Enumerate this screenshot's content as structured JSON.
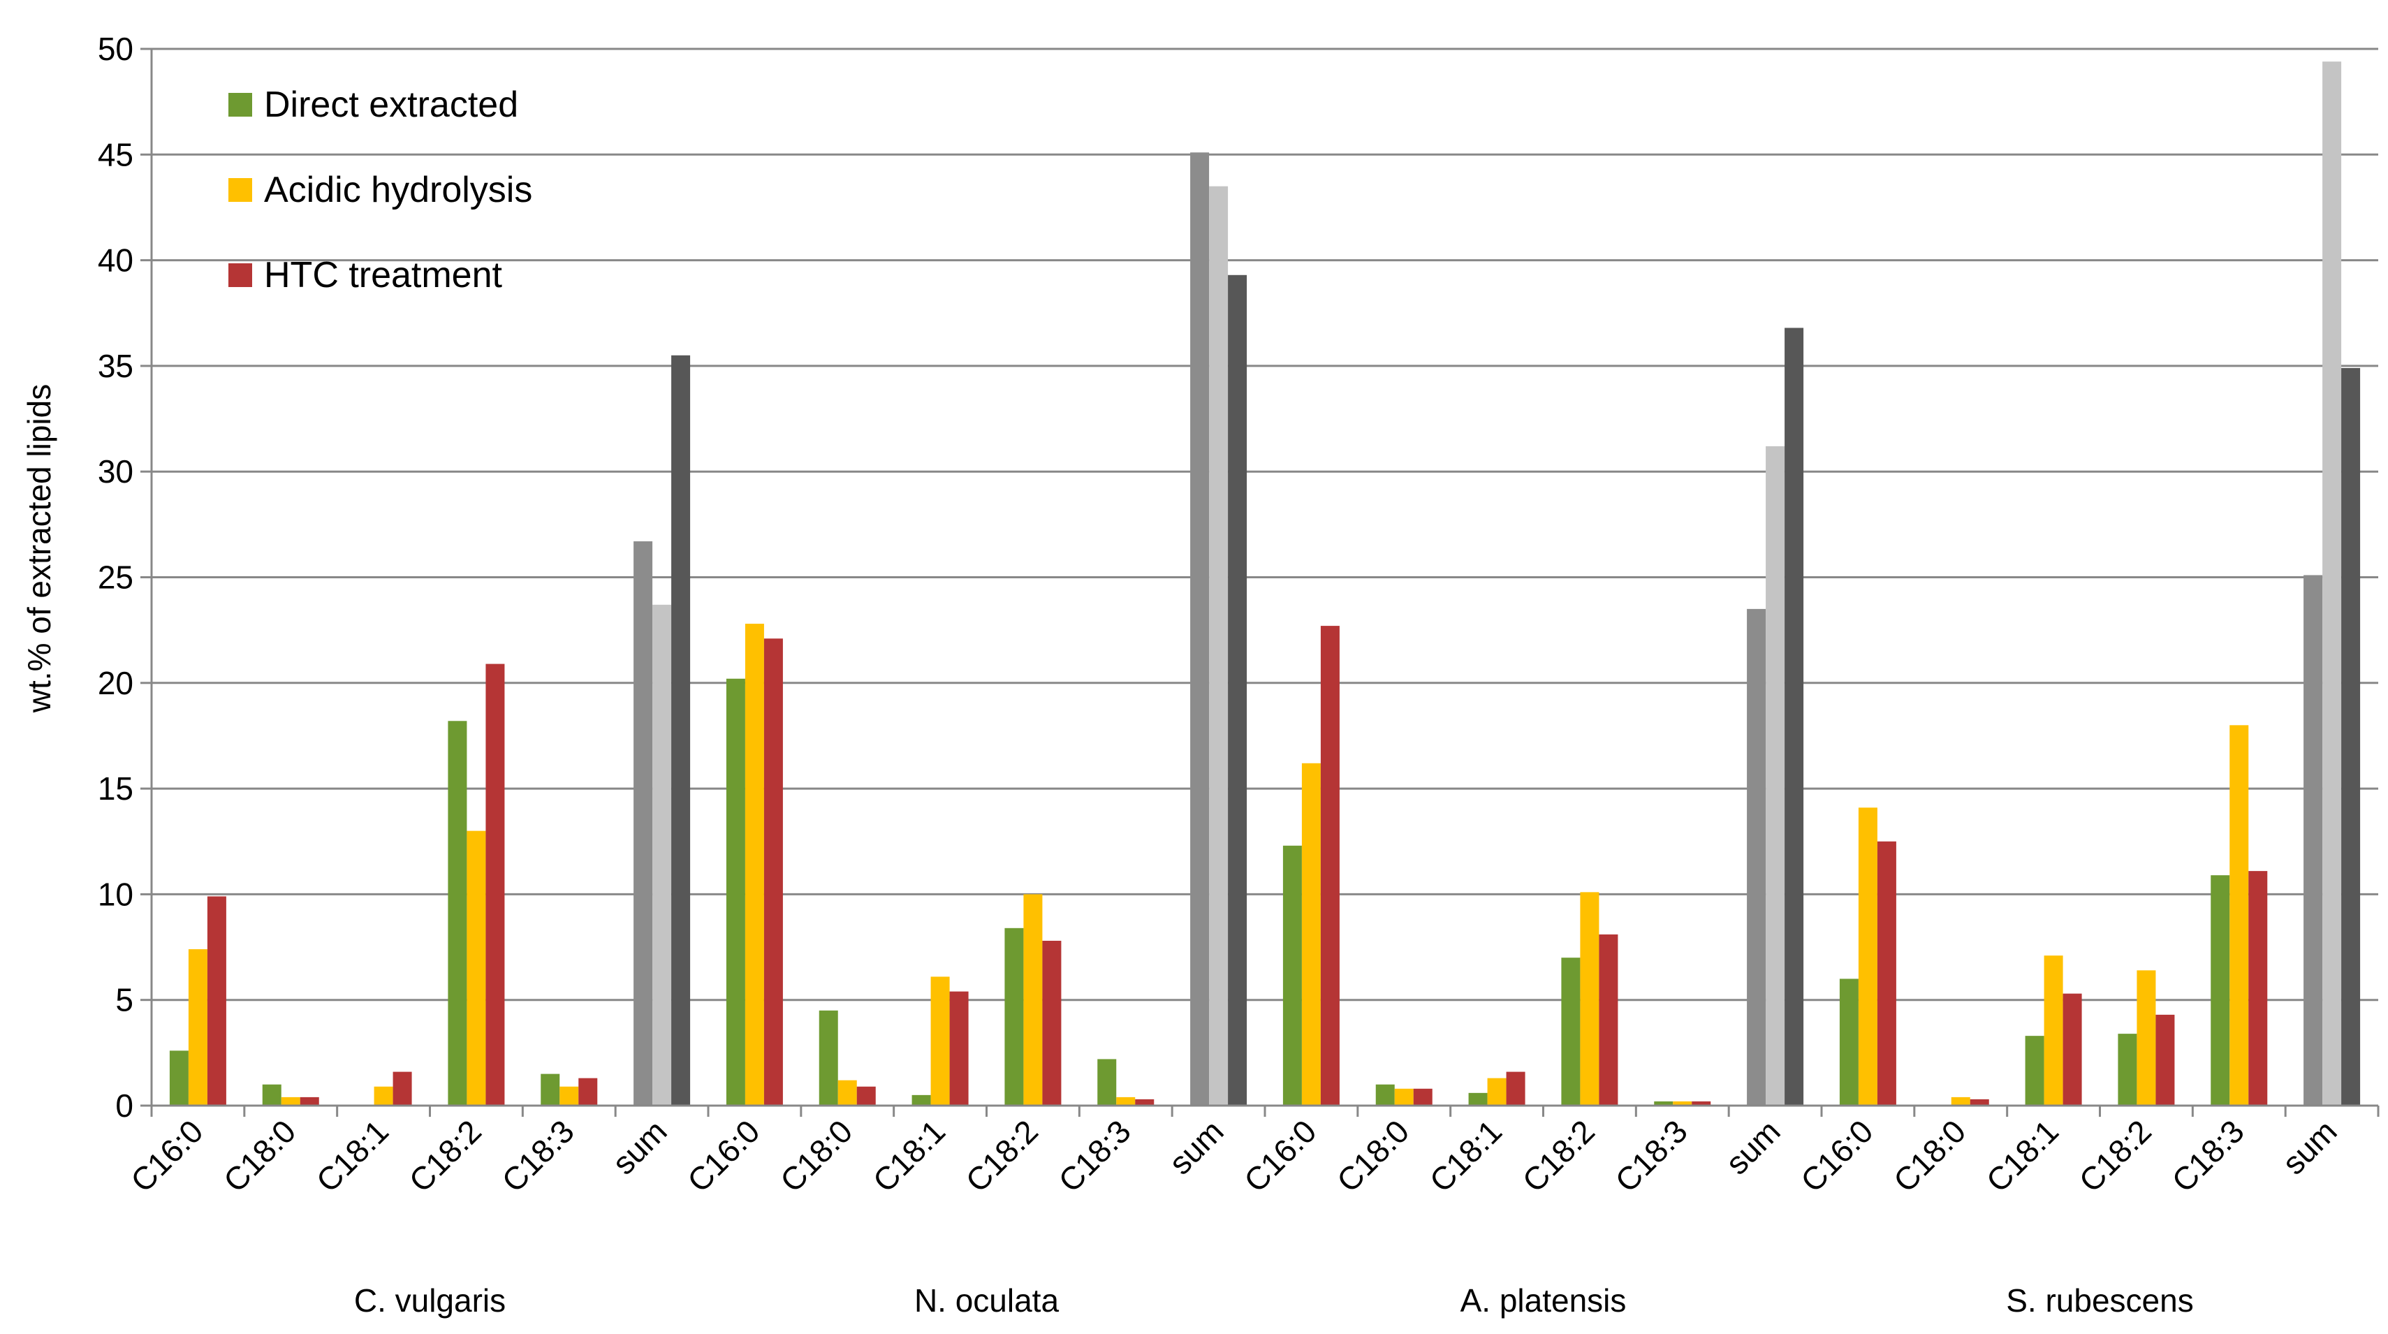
{
  "chart_data": {
    "type": "bar",
    "ylabel": "wt.% of extracted lipids",
    "xlabel": "",
    "ylim": [
      0,
      50
    ],
    "yticks": [
      0,
      5,
      10,
      15,
      20,
      25,
      30,
      35,
      40,
      45,
      50
    ],
    "grid": "horizontal",
    "legend_position": "top-left",
    "colors": {
      "series": [
        "#6e9a31",
        "#ffc000",
        "#b53535"
      ],
      "sum": [
        "#8c8c8c",
        "#c4c4c4",
        "#575757"
      ],
      "grid": "#888888",
      "axis": "#888888"
    },
    "series": [
      {
        "name": "Direct extracted"
      },
      {
        "name": "Acidic hydrolysis"
      },
      {
        "name": "HTC treatment"
      }
    ],
    "groups": [
      {
        "name": "C. vulgaris",
        "categories": [
          {
            "label": "C16:0",
            "values": [
              2.6,
              7.4,
              9.9
            ]
          },
          {
            "label": "C18:0",
            "values": [
              1.0,
              0.4,
              0.4
            ]
          },
          {
            "label": "C18:1",
            "values": [
              0.0,
              0.9,
              1.6
            ]
          },
          {
            "label": "C18:2",
            "values": [
              18.2,
              13.0,
              20.9
            ]
          },
          {
            "label": "C18:3",
            "values": [
              1.5,
              0.9,
              1.3
            ]
          },
          {
            "label": "sum",
            "values": [
              26.7,
              23.7,
              35.5
            ],
            "is_sum": true
          }
        ]
      },
      {
        "name": "N. oculata",
        "categories": [
          {
            "label": "C16:0",
            "values": [
              20.2,
              22.8,
              22.1
            ]
          },
          {
            "label": "C18:0",
            "values": [
              4.5,
              1.2,
              0.9
            ]
          },
          {
            "label": "C18:1",
            "values": [
              0.5,
              6.1,
              5.4
            ]
          },
          {
            "label": "C18:2",
            "values": [
              8.4,
              10.0,
              7.8
            ]
          },
          {
            "label": "C18:3",
            "values": [
              2.2,
              0.4,
              0.3
            ]
          },
          {
            "label": "sum",
            "values": [
              45.1,
              43.5,
              39.3
            ],
            "is_sum": true
          }
        ]
      },
      {
        "name": "A. platensis",
        "categories": [
          {
            "label": "C16:0",
            "values": [
              12.3,
              16.2,
              22.7
            ]
          },
          {
            "label": "C18:0",
            "values": [
              1.0,
              0.8,
              0.8
            ]
          },
          {
            "label": "C18:1",
            "values": [
              0.6,
              1.3,
              1.6
            ]
          },
          {
            "label": "C18:2",
            "values": [
              7.0,
              10.1,
              8.1
            ]
          },
          {
            "label": "C18:3",
            "values": [
              0.2,
              0.2,
              0.2
            ]
          },
          {
            "label": "sum",
            "values": [
              23.5,
              31.2,
              36.8
            ],
            "is_sum": true
          }
        ]
      },
      {
        "name": "S. rubescens",
        "categories": [
          {
            "label": "C16:0",
            "values": [
              6.0,
              14.1,
              12.5
            ]
          },
          {
            "label": "C18:0",
            "values": [
              0.0,
              0.4,
              0.3
            ]
          },
          {
            "label": "C18:1",
            "values": [
              3.3,
              7.1,
              5.3
            ]
          },
          {
            "label": "C18:2",
            "values": [
              3.4,
              6.4,
              4.3
            ]
          },
          {
            "label": "C18:3",
            "values": [
              10.9,
              18.0,
              11.1
            ]
          },
          {
            "label": "sum",
            "values": [
              25.1,
              49.4,
              34.9
            ],
            "is_sum": true
          }
        ]
      }
    ]
  }
}
